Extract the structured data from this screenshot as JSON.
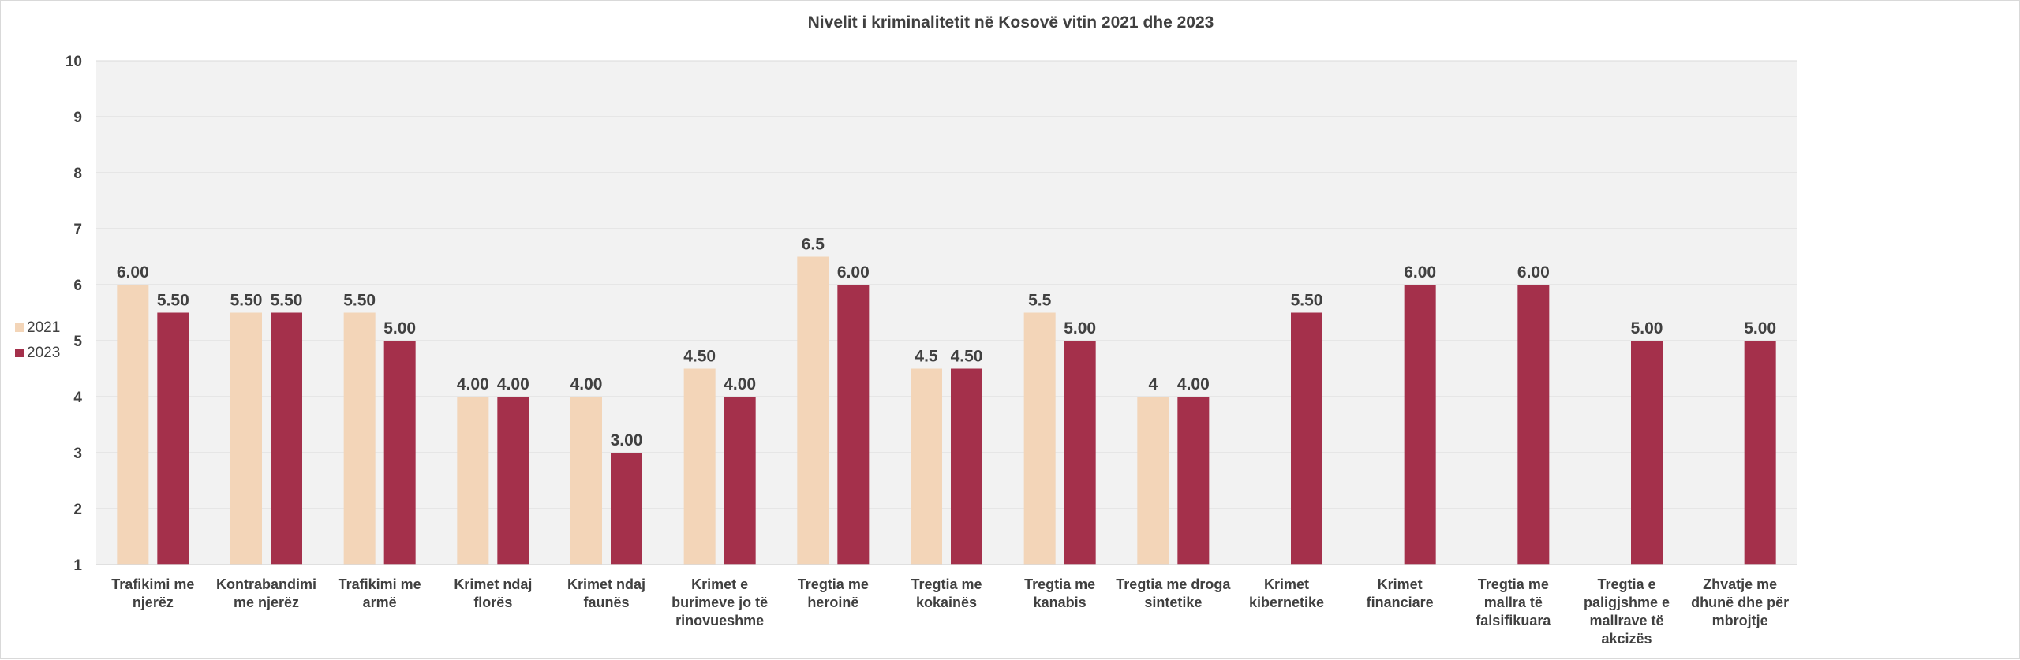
{
  "chart_data": {
    "type": "bar",
    "title": "Nivelit i kriminalitetit në Kosovë vitin 2021 dhe 2023",
    "categories": [
      [
        "Trafikimi me",
        "njerëz"
      ],
      [
        "Kontrabandimi",
        "me njerëz"
      ],
      [
        "Trafikimi me",
        "armë"
      ],
      [
        "Krimet ndaj",
        "florës"
      ],
      [
        "Krimet ndaj",
        "faunës"
      ],
      [
        "Krimet e",
        "burimeve jo të",
        "rinovueshme"
      ],
      [
        "Tregtia me",
        "heroinë"
      ],
      [
        "Tregtia me",
        "kokainës"
      ],
      [
        "Tregtia me",
        "kanabis"
      ],
      [
        "Tregtia me droga",
        "sintetike"
      ],
      [
        "Krimet",
        "kibernetike"
      ],
      [
        "Krimet",
        "financiare"
      ],
      [
        "Tregtia me",
        "mallra të",
        "falsifikuara"
      ],
      [
        "Tregtia e",
        "paligjshme e",
        "mallrave të",
        "akcizës"
      ],
      [
        "Zhvatje me",
        "dhunë dhe për",
        "mbrojtje"
      ]
    ],
    "series": [
      {
        "name": "2021",
        "color": "#f3d5b8",
        "values": [
          6.0,
          5.5,
          5.5,
          4.0,
          4.0,
          4.5,
          6.5,
          4.5,
          5.5,
          4.0,
          null,
          null,
          null,
          null,
          null
        ],
        "labels": [
          "6.00",
          "5.50",
          "5.50",
          "4.00",
          "4.00",
          "4.50",
          "6.5",
          "4.5",
          "5.5",
          "4",
          "",
          "",
          "",
          "",
          ""
        ]
      },
      {
        "name": "2023",
        "color": "#a4304b",
        "values": [
          5.5,
          5.5,
          5.0,
          4.0,
          3.0,
          4.0,
          6.0,
          4.5,
          5.0,
          4.0,
          5.5,
          6.0,
          6.0,
          5.0,
          5.0
        ],
        "labels": [
          "5.50",
          "5.50",
          "5.00",
          "4.00",
          "3.00",
          "4.00",
          "6.00",
          "4.50",
          "5.00",
          "4.00",
          "5.50",
          "6.00",
          "6.00",
          "5.00",
          "5.00"
        ]
      }
    ],
    "ylim": [
      1,
      10
    ],
    "yticks": [
      1,
      2,
      3,
      4,
      5,
      6,
      7,
      8,
      9,
      10
    ],
    "grid": true,
    "plot_background": "#f2f2f2",
    "gridline_color": "#d9d9d9",
    "legend": "left"
  }
}
